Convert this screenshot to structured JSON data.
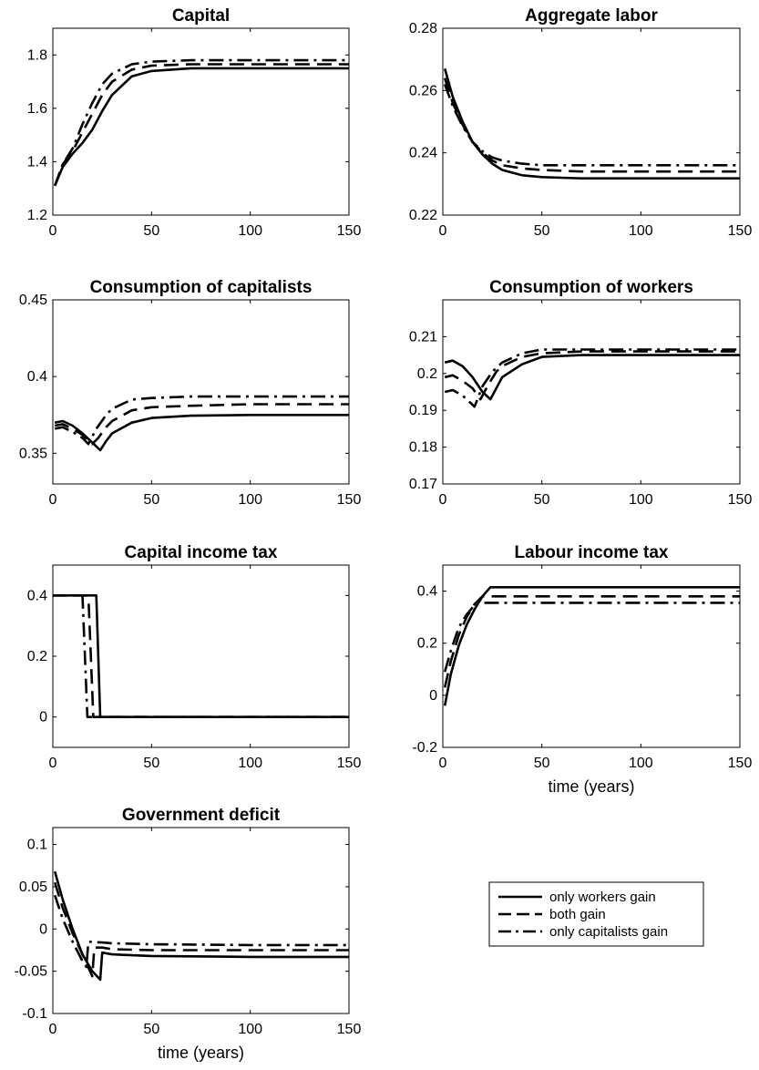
{
  "chart_data": [
    {
      "type": "line",
      "title": "Capital",
      "xlabel": "",
      "ylabel": "",
      "xlim": [
        0,
        150
      ],
      "ylim": [
        1.2,
        1.9
      ],
      "xticks": [
        0,
        50,
        100,
        150
      ],
      "yticks": [
        1.2,
        1.4,
        1.6,
        1.8
      ],
      "ytick_labels": [
        "1.2",
        "1.4",
        "1.6",
        "1.8"
      ],
      "grid": false,
      "series": [
        {
          "key": "only_workers",
          "x": [
            1,
            5,
            10,
            15,
            20,
            25,
            30,
            40,
            50,
            70,
            100,
            150
          ],
          "y": [
            1.31,
            1.38,
            1.43,
            1.47,
            1.52,
            1.59,
            1.65,
            1.72,
            1.74,
            1.75,
            1.75,
            1.75
          ]
        },
        {
          "key": "both",
          "x": [
            1,
            5,
            10,
            15,
            20,
            25,
            30,
            40,
            50,
            70,
            100,
            150
          ],
          "y": [
            1.31,
            1.39,
            1.44,
            1.51,
            1.58,
            1.65,
            1.7,
            1.745,
            1.76,
            1.765,
            1.765,
            1.765
          ]
        },
        {
          "key": "only_capitalists",
          "x": [
            1,
            5,
            10,
            15,
            20,
            25,
            30,
            40,
            50,
            70,
            100,
            150
          ],
          "y": [
            1.31,
            1.39,
            1.45,
            1.54,
            1.62,
            1.69,
            1.73,
            1.765,
            1.775,
            1.78,
            1.78,
            1.78
          ]
        }
      ]
    },
    {
      "type": "line",
      "title": "Aggregate labor",
      "xlabel": "",
      "ylabel": "",
      "xlim": [
        0,
        150
      ],
      "ylim": [
        0.22,
        0.28
      ],
      "xticks": [
        0,
        50,
        100,
        150
      ],
      "yticks": [
        0.22,
        0.24,
        0.26,
        0.28
      ],
      "ytick_labels": [
        "0.22",
        "0.24",
        "0.26",
        "0.28"
      ],
      "grid": false,
      "series": [
        {
          "key": "only_workers",
          "x": [
            1,
            5,
            10,
            15,
            20,
            25,
            30,
            40,
            50,
            70,
            100,
            150
          ],
          "y": [
            0.267,
            0.258,
            0.25,
            0.2435,
            0.2395,
            0.2365,
            0.2345,
            0.2328,
            0.2322,
            0.2318,
            0.2318,
            0.2318
          ]
        },
        {
          "key": "both",
          "x": [
            1,
            5,
            10,
            15,
            20,
            25,
            30,
            40,
            50,
            70,
            100,
            150
          ],
          "y": [
            0.264,
            0.256,
            0.249,
            0.2435,
            0.24,
            0.2375,
            0.236,
            0.235,
            0.2345,
            0.234,
            0.234,
            0.234
          ]
        },
        {
          "key": "only_capitalists",
          "x": [
            1,
            5,
            10,
            15,
            20,
            25,
            30,
            40,
            50,
            70,
            100,
            150
          ],
          "y": [
            0.262,
            0.255,
            0.2485,
            0.2435,
            0.2405,
            0.2385,
            0.2375,
            0.2365,
            0.236,
            0.236,
            0.236,
            0.236
          ]
        }
      ]
    },
    {
      "type": "line",
      "title": "Consumption of capitalists",
      "xlabel": "",
      "ylabel": "",
      "xlim": [
        0,
        150
      ],
      "ylim": [
        0.33,
        0.45
      ],
      "xticks": [
        0,
        50,
        100,
        150
      ],
      "yticks": [
        0.35,
        0.4,
        0.45
      ],
      "ytick_labels": [
        "0.35",
        "0.4",
        "0.45"
      ],
      "grid": false,
      "series": [
        {
          "key": "only_workers",
          "x": [
            1,
            5,
            10,
            15,
            20,
            24,
            27,
            30,
            40,
            50,
            70,
            100,
            150
          ],
          "y": [
            0.37,
            0.371,
            0.368,
            0.363,
            0.357,
            0.352,
            0.358,
            0.363,
            0.37,
            0.373,
            0.3745,
            0.375,
            0.375
          ]
        },
        {
          "key": "both",
          "x": [
            1,
            5,
            10,
            15,
            20,
            23,
            27,
            30,
            40,
            50,
            70,
            100,
            150
          ],
          "y": [
            0.368,
            0.369,
            0.366,
            0.362,
            0.356,
            0.36,
            0.367,
            0.371,
            0.378,
            0.38,
            0.381,
            0.382,
            0.382
          ]
        },
        {
          "key": "only_capitalists",
          "x": [
            1,
            5,
            10,
            15,
            18,
            22,
            27,
            30,
            40,
            50,
            70,
            100,
            150
          ],
          "y": [
            0.366,
            0.367,
            0.364,
            0.36,
            0.356,
            0.366,
            0.375,
            0.379,
            0.385,
            0.386,
            0.387,
            0.387,
            0.387
          ]
        }
      ]
    },
    {
      "type": "line",
      "title": "Consumption of workers",
      "xlabel": "",
      "ylabel": "",
      "xlim": [
        0,
        150
      ],
      "ylim": [
        0.17,
        0.22
      ],
      "xticks": [
        0,
        50,
        100,
        150
      ],
      "yticks": [
        0.17,
        0.18,
        0.19,
        0.2,
        0.21
      ],
      "ytick_labels": [
        "0.17",
        "0.18",
        "0.19",
        "0.2",
        "0.21"
      ],
      "grid": false,
      "series": [
        {
          "key": "only_workers",
          "x": [
            1,
            5,
            10,
            15,
            20,
            24,
            27,
            30,
            40,
            50,
            70,
            100,
            150
          ],
          "y": [
            0.203,
            0.2035,
            0.202,
            0.199,
            0.195,
            0.193,
            0.196,
            0.199,
            0.2025,
            0.2045,
            0.205,
            0.205,
            0.205
          ]
        },
        {
          "key": "both",
          "x": [
            1,
            5,
            10,
            15,
            19,
            23,
            27,
            30,
            40,
            50,
            70,
            100,
            150
          ],
          "y": [
            0.199,
            0.1995,
            0.198,
            0.196,
            0.193,
            0.197,
            0.2005,
            0.202,
            0.2045,
            0.2055,
            0.206,
            0.206,
            0.206
          ]
        },
        {
          "key": "only_capitalists",
          "x": [
            1,
            5,
            10,
            13,
            16,
            20,
            25,
            30,
            40,
            50,
            70,
            100,
            150
          ],
          "y": [
            0.195,
            0.1955,
            0.194,
            0.1925,
            0.191,
            0.1965,
            0.2005,
            0.203,
            0.2055,
            0.2065,
            0.2065,
            0.2065,
            0.2065
          ]
        }
      ]
    },
    {
      "type": "line",
      "title": "Capital income tax",
      "xlabel": "",
      "ylabel": "",
      "xlim": [
        0,
        150
      ],
      "ylim": [
        -0.1,
        0.5
      ],
      "xticks": [
        0,
        50,
        100,
        150
      ],
      "yticks": [
        0,
        0.2,
        0.4
      ],
      "ytick_labels": [
        "0",
        "0.2",
        "0.4"
      ],
      "grid": false,
      "series": [
        {
          "key": "only_workers",
          "x": [
            0,
            22,
            24,
            150
          ],
          "y": [
            0.4,
            0.4,
            0,
            0
          ]
        },
        {
          "key": "both",
          "x": [
            0,
            18,
            20.5,
            150
          ],
          "y": [
            0.4,
            0.4,
            0,
            0
          ]
        },
        {
          "key": "only_capitalists",
          "x": [
            0,
            15,
            17.5,
            150
          ],
          "y": [
            0.4,
            0.4,
            0,
            0
          ]
        }
      ]
    },
    {
      "type": "line",
      "title": "Labour income tax",
      "xlabel": "time (years)",
      "ylabel": "",
      "xlim": [
        0,
        150
      ],
      "ylim": [
        -0.2,
        0.5
      ],
      "xticks": [
        0,
        50,
        100,
        150
      ],
      "yticks": [
        -0.2,
        0,
        0.2,
        0.4
      ],
      "ytick_labels": [
        "-0.2",
        "0",
        "0.2",
        "0.4"
      ],
      "grid": false,
      "series": [
        {
          "key": "only_workers",
          "x": [
            1,
            4,
            8,
            12,
            16,
            20,
            24,
            150
          ],
          "y": [
            -0.04,
            0.08,
            0.19,
            0.27,
            0.33,
            0.38,
            0.415,
            0.415
          ]
        },
        {
          "key": "both",
          "x": [
            1,
            4,
            8,
            12,
            16,
            20,
            150
          ],
          "y": [
            0.03,
            0.13,
            0.23,
            0.3,
            0.35,
            0.38,
            0.38
          ]
        },
        {
          "key": "only_capitalists",
          "x": [
            1,
            4,
            8,
            12,
            17,
            150
          ],
          "y": [
            0.09,
            0.17,
            0.26,
            0.31,
            0.355,
            0.355
          ]
        }
      ]
    },
    {
      "type": "line",
      "title": "Government deficit",
      "xlabel": "time (years)",
      "ylabel": "",
      "xlim": [
        0,
        150
      ],
      "ylim": [
        -0.1,
        0.12
      ],
      "xticks": [
        0,
        50,
        100,
        150
      ],
      "yticks": [
        -0.1,
        -0.05,
        0,
        0.05,
        0.1
      ],
      "ytick_labels": [
        "-0.1",
        "-0.05",
        "0",
        "0.05",
        "0.1"
      ],
      "grid": false,
      "series": [
        {
          "key": "only_workers",
          "x": [
            1,
            5,
            10,
            15,
            20,
            24,
            25,
            30,
            50,
            100,
            150
          ],
          "y": [
            0.068,
            0.035,
            0.0,
            -0.03,
            -0.05,
            -0.06,
            -0.028,
            -0.03,
            -0.032,
            -0.033,
            -0.033
          ]
        },
        {
          "key": "both",
          "x": [
            1,
            5,
            10,
            15,
            20,
            21,
            25,
            30,
            50,
            100,
            150
          ],
          "y": [
            0.055,
            0.025,
            -0.005,
            -0.03,
            -0.056,
            -0.022,
            -0.022,
            -0.024,
            -0.025,
            -0.025,
            -0.025
          ]
        },
        {
          "key": "only_capitalists",
          "x": [
            1,
            5,
            10,
            15,
            17,
            18,
            25,
            30,
            50,
            100,
            150
          ],
          "y": [
            0.04,
            0.012,
            -0.015,
            -0.038,
            -0.045,
            -0.015,
            -0.016,
            -0.017,
            -0.018,
            -0.019,
            -0.019
          ]
        }
      ]
    }
  ],
  "legend": {
    "placement": "bottom-right",
    "entries": [
      {
        "key": "only_workers",
        "label": "only workers gain"
      },
      {
        "key": "both",
        "label": "both gain"
      },
      {
        "key": "only_capitalists",
        "label": "only capitalists gain"
      }
    ]
  },
  "styles": {
    "only_workers": {
      "color": "#000000",
      "dash": "solid"
    },
    "both": {
      "color": "#000000",
      "dash": "dashed"
    },
    "only_capitalists": {
      "color": "#000000",
      "dash": "dashdot"
    }
  }
}
